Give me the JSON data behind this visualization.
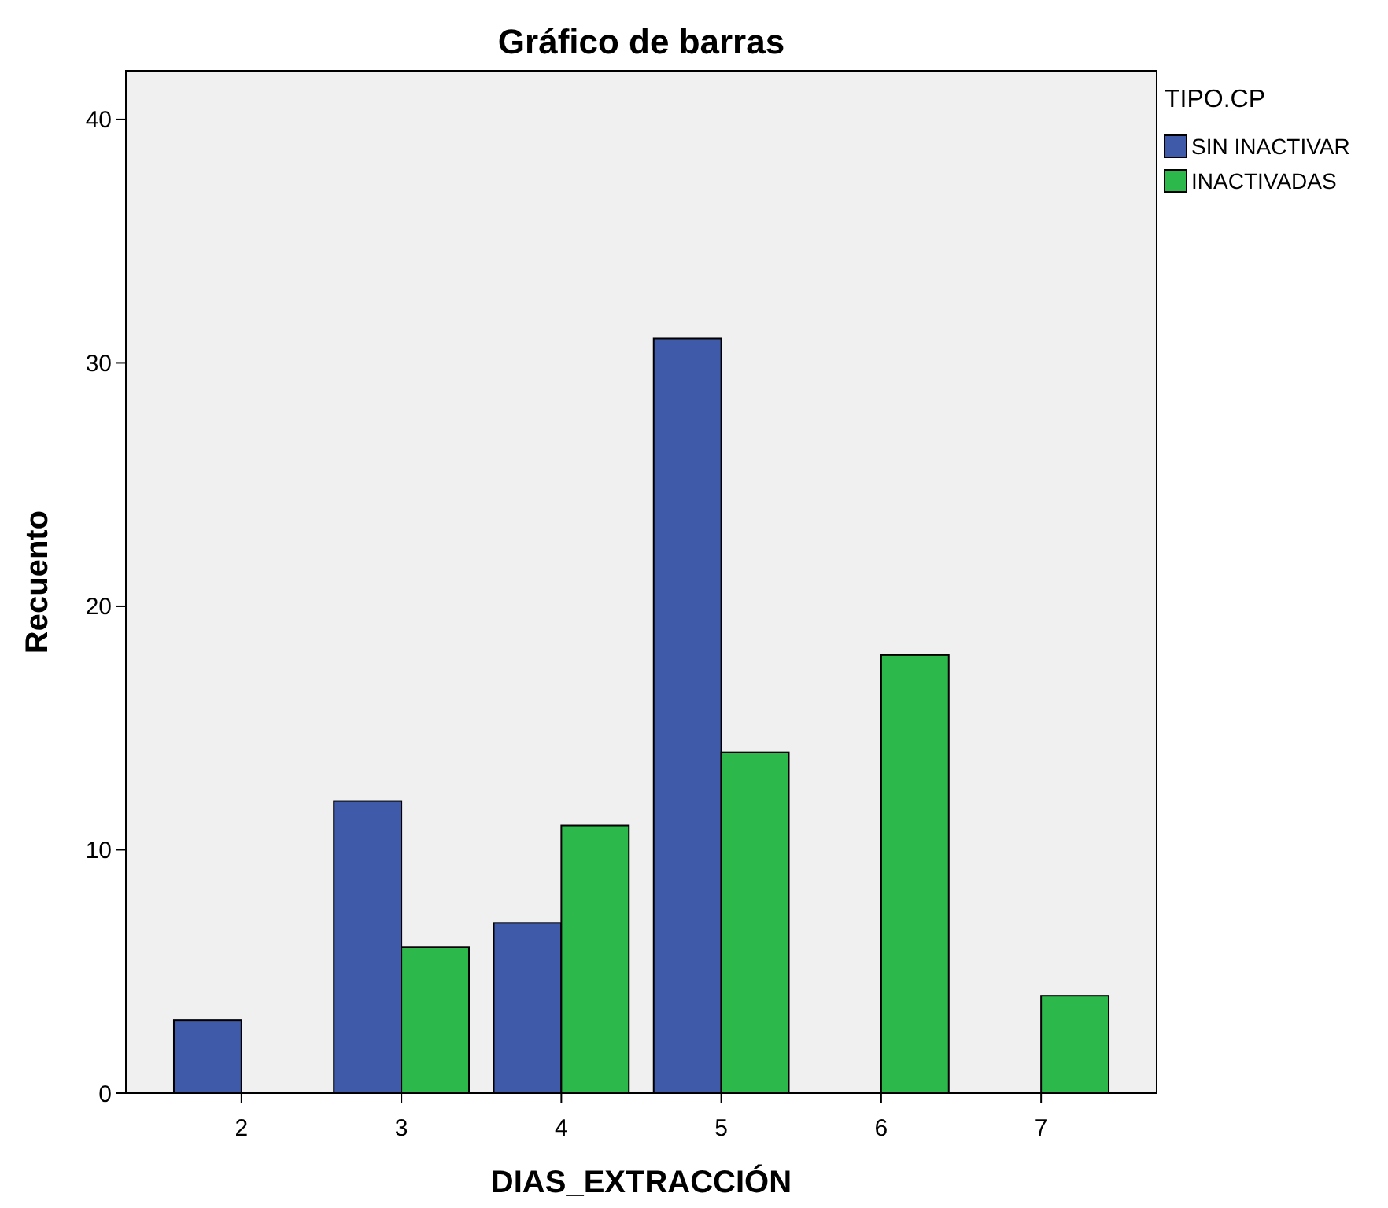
{
  "chart_data": {
    "type": "bar",
    "title": "Gráfico de barras",
    "xlabel": "DIAS_EXTRACCIÓN",
    "ylabel": "Recuento",
    "legend_title": "TIPO.CP",
    "categories": [
      "2",
      "3",
      "4",
      "5",
      "6",
      "7"
    ],
    "series": [
      {
        "name": "SIN INACTIVAR",
        "color": "#3f5aa9",
        "values": [
          3,
          12,
          7,
          31,
          null,
          null
        ]
      },
      {
        "name": "INACTIVADAS",
        "color": "#2db84b",
        "values": [
          null,
          6,
          11,
          14,
          18,
          4
        ]
      }
    ],
    "ylim": [
      0,
      42
    ],
    "yticks": [
      0,
      10,
      20,
      30,
      40
    ],
    "grid": false,
    "legend": "top right"
  }
}
